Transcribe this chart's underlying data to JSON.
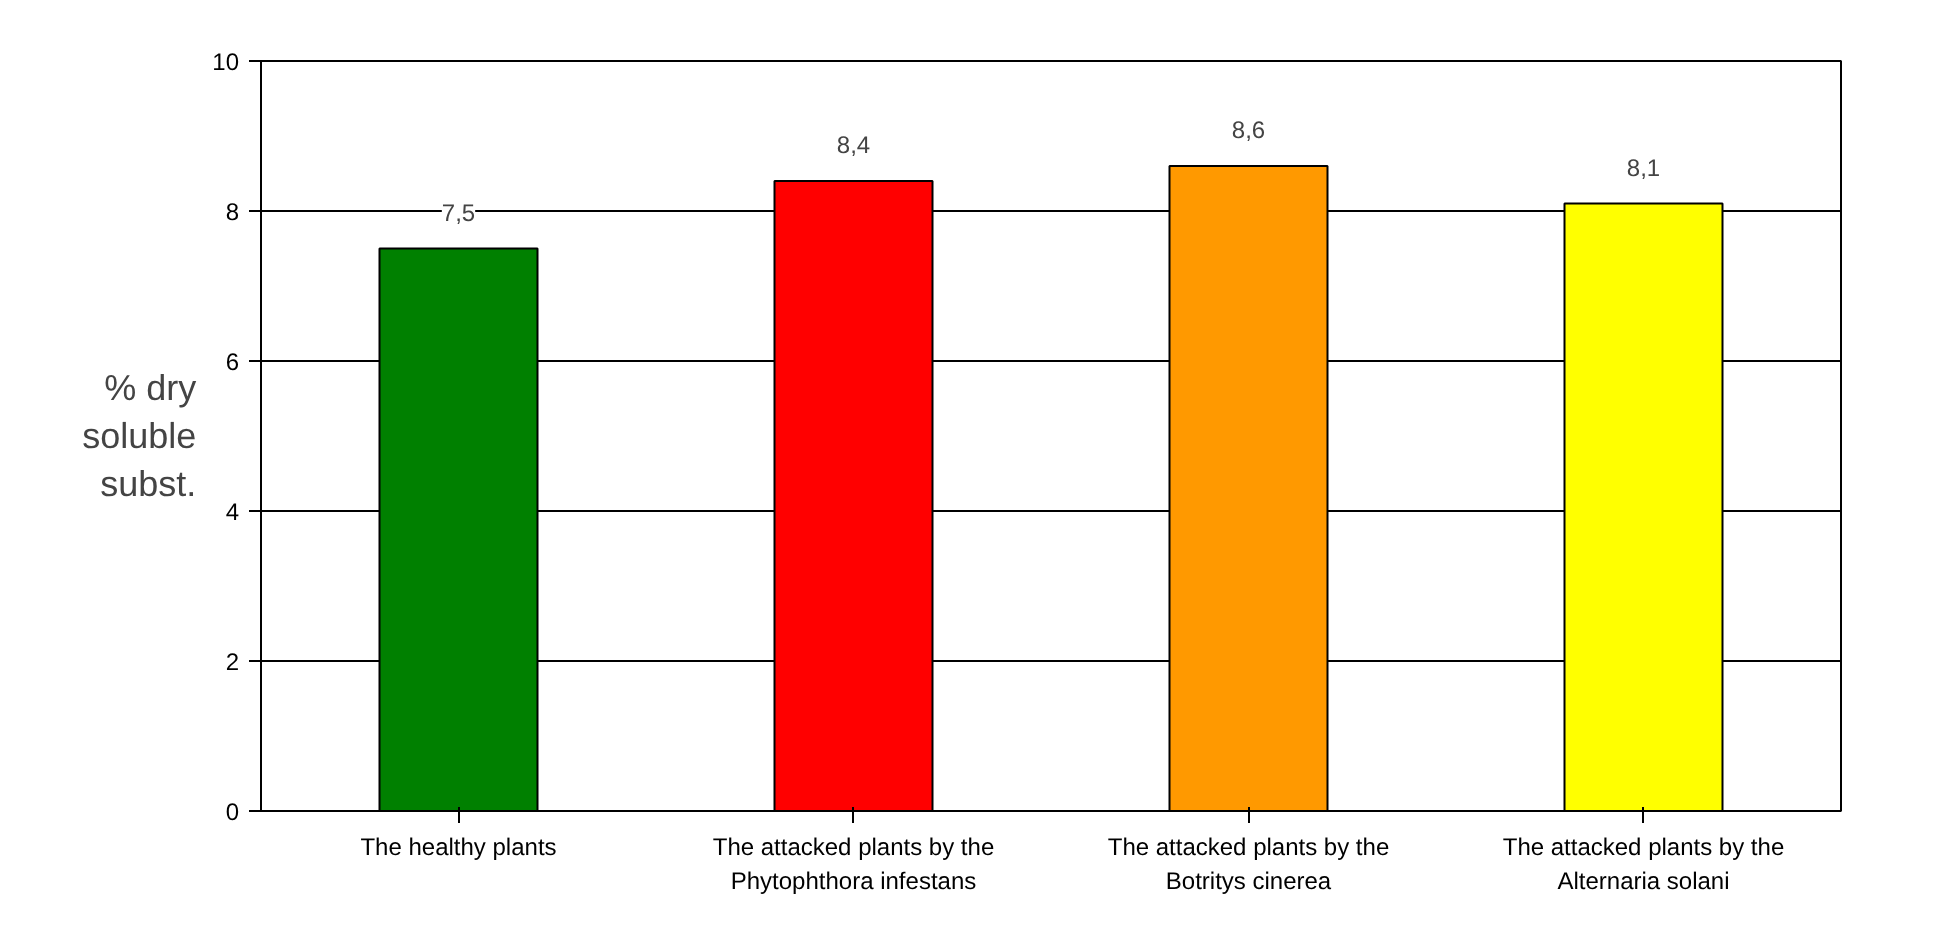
{
  "chart_data": {
    "type": "bar",
    "ylabel": "% dry soluble subst.",
    "categories": [
      "The healthy plants",
      "The attacked plants by the Phytophthora infestans",
      "The attacked plants by the Botritys cinerea",
      "The attacked plants by the Alternaria solani"
    ],
    "values": [
      7.5,
      8.4,
      8.6,
      8.1
    ],
    "colors": [
      "#008000",
      "#ff0000",
      "#ff9900",
      "#ffff00"
    ],
    "value_labels": [
      "7,5",
      "8,4",
      "8,6",
      "8,1"
    ],
    "ylim": [
      0,
      10
    ],
    "yticks": [
      0,
      2,
      4,
      6,
      8,
      10
    ],
    "grid": "y"
  }
}
